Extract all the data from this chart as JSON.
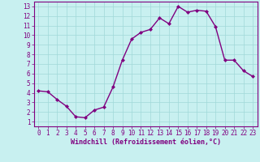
{
  "x": [
    0,
    1,
    2,
    3,
    4,
    5,
    6,
    7,
    8,
    9,
    10,
    11,
    12,
    13,
    14,
    15,
    16,
    17,
    18,
    19,
    20,
    21,
    22,
    23
  ],
  "y": [
    4.2,
    4.1,
    3.3,
    2.6,
    1.5,
    1.4,
    2.2,
    2.5,
    4.6,
    7.4,
    9.6,
    10.3,
    10.6,
    11.8,
    11.2,
    13.0,
    12.4,
    12.6,
    12.5,
    10.9,
    7.4,
    7.4,
    6.3,
    5.7
  ],
  "line_color": "#800080",
  "marker": "D",
  "marker_size": 2.0,
  "bg_color": "#c8f0f0",
  "grid_color": "#a0d8d8",
  "xlabel": "Windchill (Refroidissement éolien,°C)",
  "xlabel_color": "#800080",
  "tick_color": "#800080",
  "ylim": [
    0.5,
    13.5
  ],
  "xlim": [
    -0.5,
    23.5
  ],
  "yticks": [
    1,
    2,
    3,
    4,
    5,
    6,
    7,
    8,
    9,
    10,
    11,
    12,
    13
  ],
  "xticks": [
    0,
    1,
    2,
    3,
    4,
    5,
    6,
    7,
    8,
    9,
    10,
    11,
    12,
    13,
    14,
    15,
    16,
    17,
    18,
    19,
    20,
    21,
    22,
    23
  ],
  "spine_color": "#800080",
  "tick_fontsize": 5.5,
  "xlabel_fontsize": 6.0,
  "linewidth": 1.0
}
